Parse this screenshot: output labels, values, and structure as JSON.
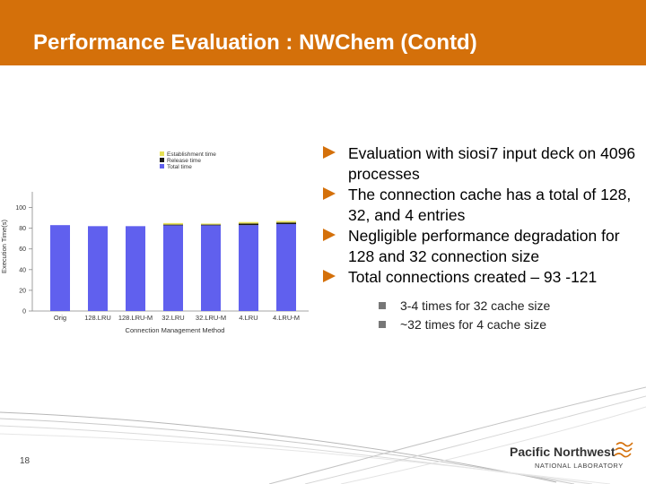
{
  "slide": {
    "title": "Performance Evaluation : NWChem (Contd)",
    "page_number": "18"
  },
  "chart_data": {
    "type": "bar",
    "stacked": true,
    "categories": [
      "Orig",
      "128.LRU",
      "128.LRU-M",
      "32.LRU",
      "32.LRU-M",
      "4.LRU",
      "4.LRU-M"
    ],
    "series": [
      {
        "name": "Total time",
        "color": "#6060ee",
        "values": [
          83,
          82,
          82,
          83,
          83,
          83,
          84
        ]
      },
      {
        "name": "Release time",
        "color": "#1a1a1a",
        "values": [
          0,
          0,
          0,
          0.5,
          0.5,
          1.5,
          1.5
        ]
      },
      {
        "name": "Establishment time",
        "color": "#e6e055",
        "values": [
          0,
          0,
          0,
          1.5,
          1,
          1.5,
          1.5
        ]
      }
    ],
    "legend": [
      "Establishment time",
      "Release time",
      "Total time"
    ],
    "xlabel": "Connection Management Method",
    "ylabel": "Execution Time(s)",
    "yticks": [
      0,
      20,
      40,
      60,
      80,
      100
    ],
    "ylim": [
      0,
      110
    ]
  },
  "bullets": [
    "Evaluation with siosi7 input deck on 4096 processes",
    "The connection cache has a total of 128, 32, and 4 entries",
    "Negligible performance degradation for 128 and 32 connection size",
    "Total connections created – 93 -121"
  ],
  "sub_bullets": [
    "3-4 times for 32 cache size",
    "~32 times for 4 cache size"
  ],
  "logo": {
    "name": "Pacific Northwest",
    "subtitle": "NATIONAL LABORATORY"
  }
}
